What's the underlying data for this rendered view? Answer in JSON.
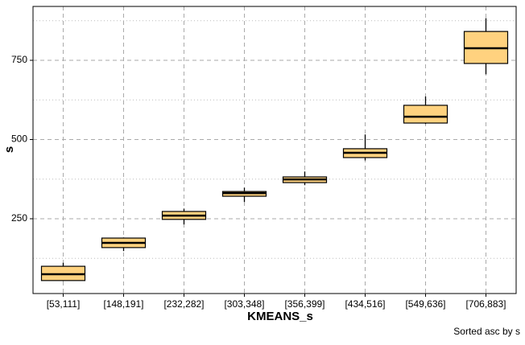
{
  "chart_data": {
    "type": "box",
    "categories": [
      "[53,111]",
      "[148,191]",
      "[232,282]",
      "[303,348]",
      "[356,399]",
      "[434,516]",
      "[549,636]",
      "[706,883]"
    ],
    "series": [
      {
        "color": "#ffd27f",
        "min": [
          53,
          148,
          232,
          303,
          356,
          434,
          549,
          706
        ],
        "q1": [
          55,
          159,
          248,
          321,
          364,
          443,
          552,
          740
        ],
        "median": [
          75,
          174,
          260,
          331,
          374,
          458,
          572,
          788
        ],
        "q3": [
          100,
          189,
          273,
          336,
          382,
          471,
          608,
          841
        ],
        "max": [
          111,
          191,
          282,
          348,
          399,
          516,
          636,
          883
        ]
      }
    ],
    "xlabel": "KMEANS_s",
    "ylabel": "s",
    "caption": "Sorted asc by  s",
    "ylim": [
      14,
      920
    ],
    "yticks": [
      250,
      500,
      750
    ],
    "minor_yticks": [
      125,
      375,
      625,
      875
    ],
    "grid": true
  }
}
